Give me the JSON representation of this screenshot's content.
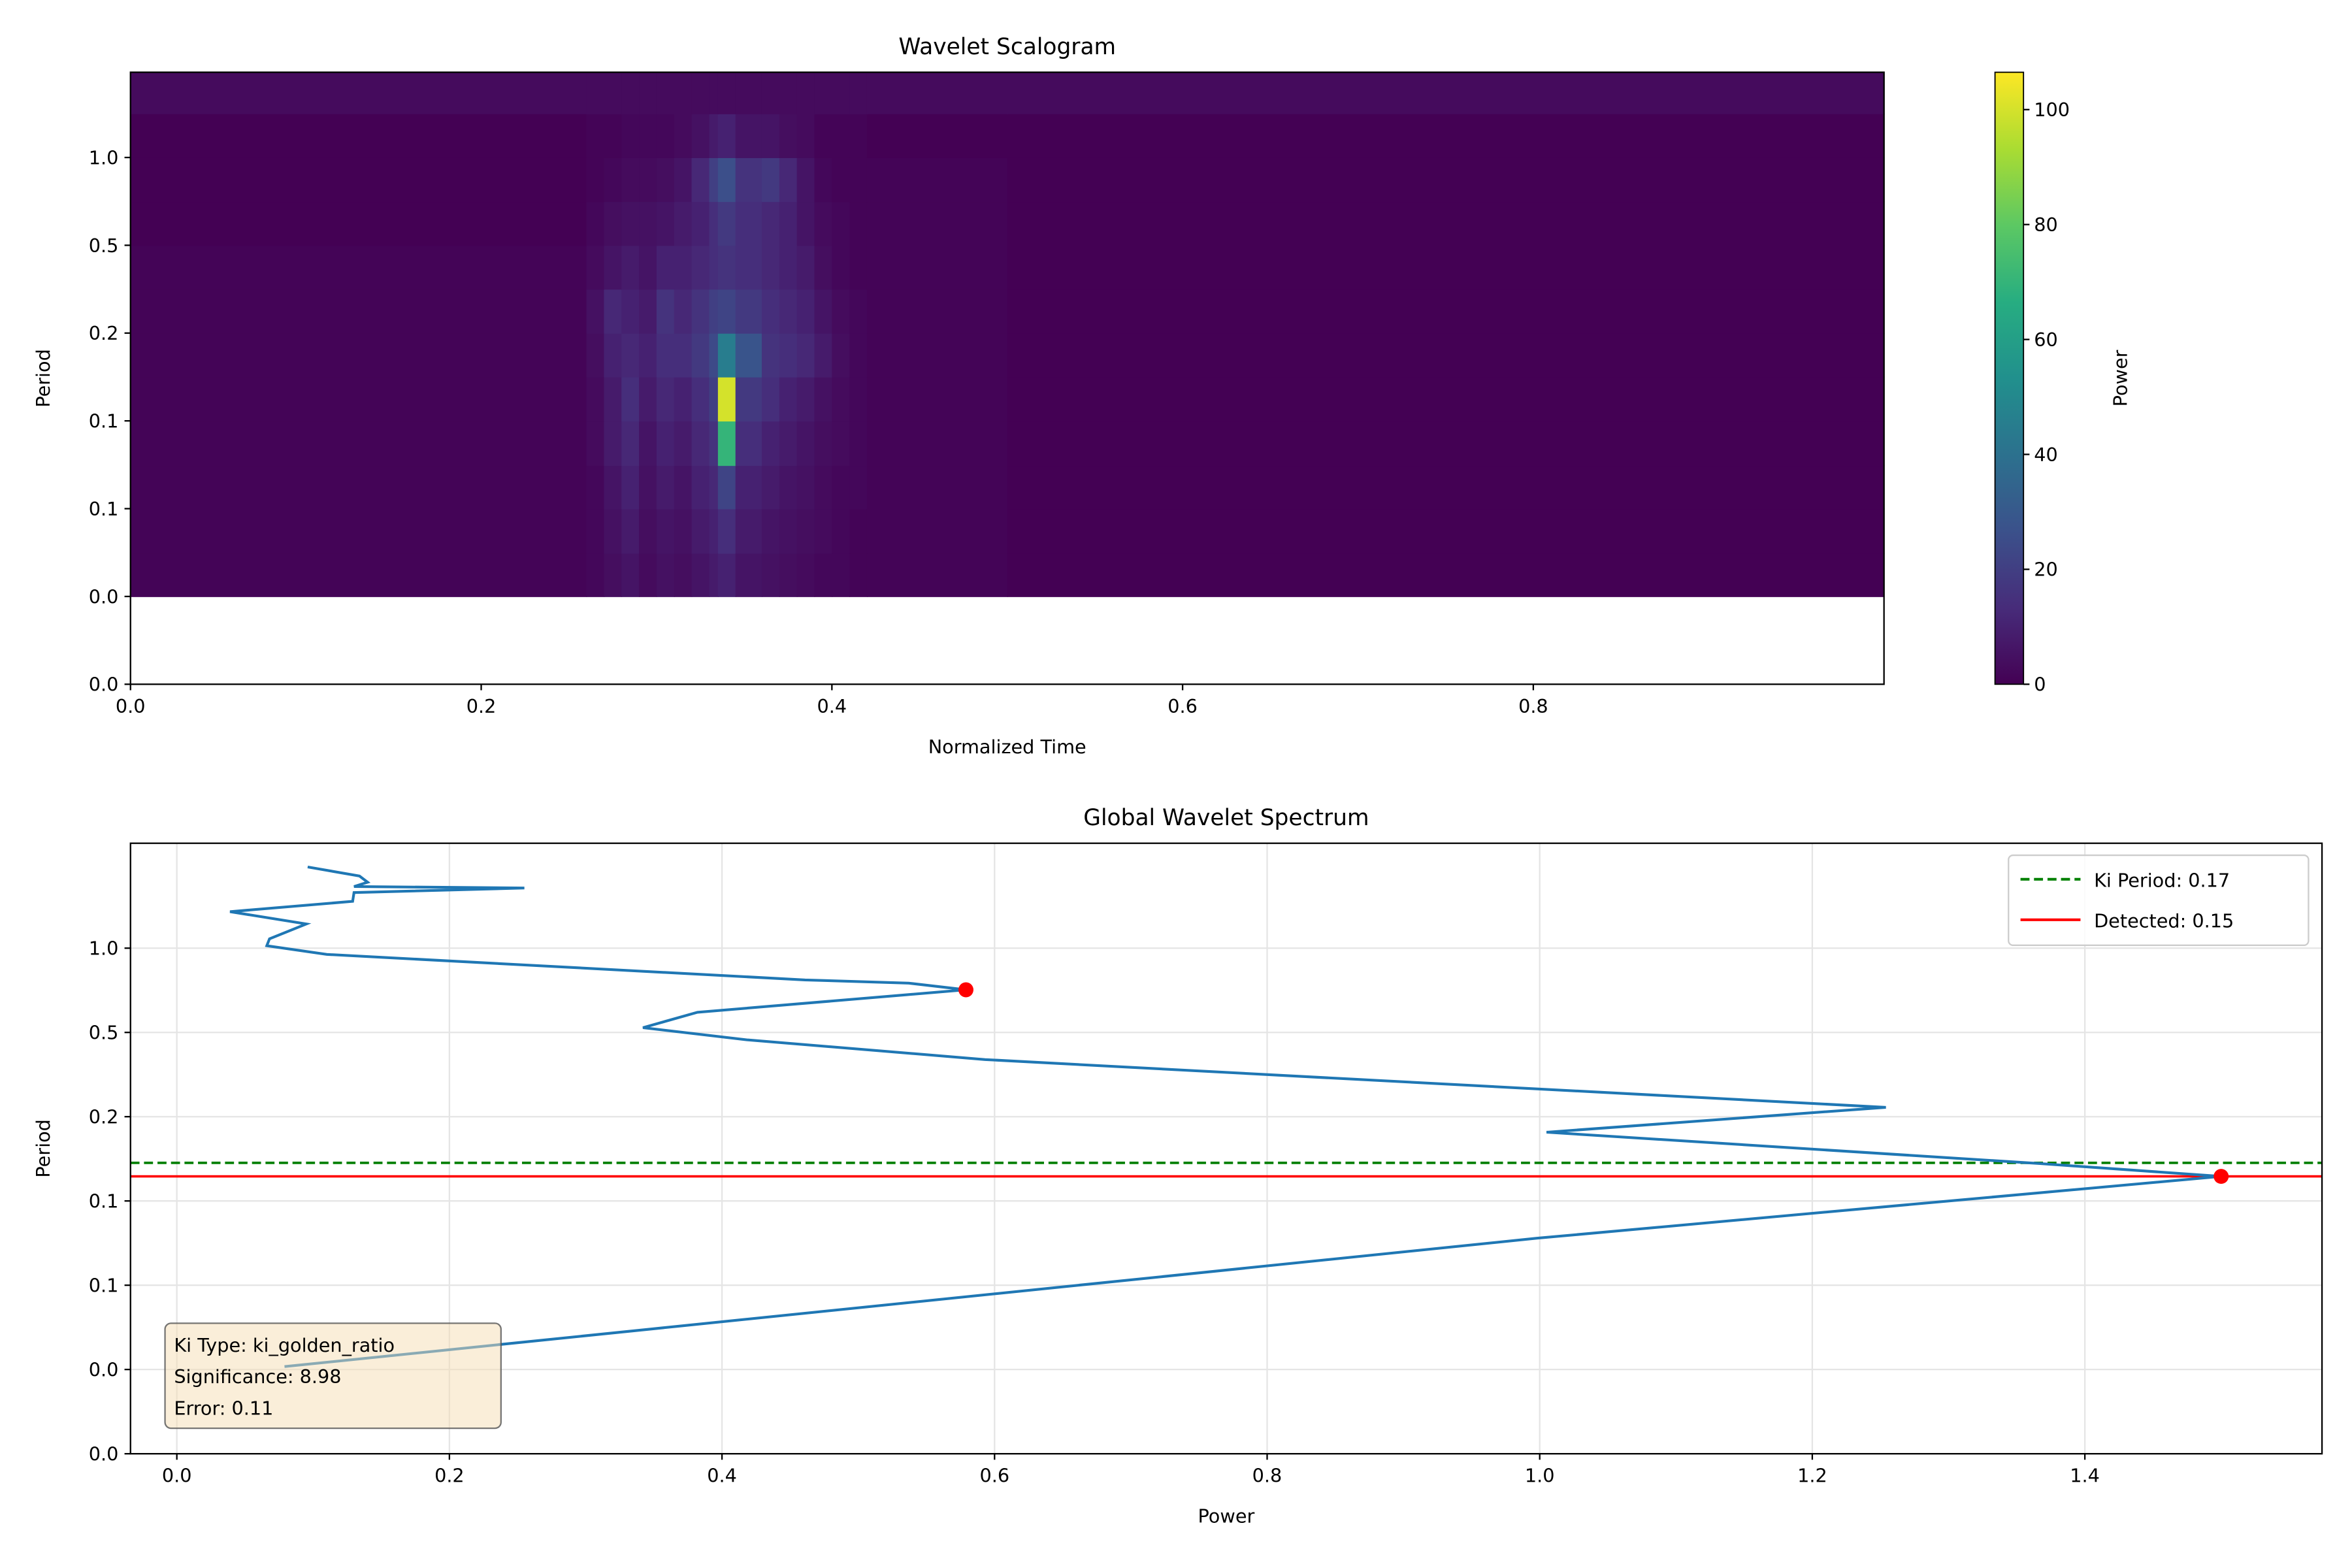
{
  "chart_data": [
    {
      "type": "heatmap",
      "title": "Wavelet Scalogram",
      "xlabel": "Normalized Time",
      "ylabel": "Period",
      "xlim": [
        0,
        1
      ],
      "ylim": [
        0.015625,
        1.96
      ],
      "yscale": "log2",
      "xticks": [
        {
          "value": 0,
          "label": "0.0"
        },
        0.2,
        0.4,
        0.6,
        0.8
      ],
      "yticks": [
        {
          "value": 0.015625,
          "label": "0.0"
        },
        {
          "value": 0.03125,
          "label": "0.0"
        },
        {
          "value": 0.0625,
          "label": "0.1"
        },
        {
          "value": 0.125,
          "label": "0.1"
        },
        {
          "value": 0.25,
          "label": "0.2"
        },
        {
          "value": 0.5,
          "label": "0.5"
        },
        {
          "value": 1,
          "label": "1.0"
        }
      ],
      "x_edges": [
        0,
        0.26,
        0.27,
        0.28,
        0.29,
        0.3,
        0.31,
        0.32,
        0.33,
        0.335,
        0.345,
        0.36,
        0.37,
        0.38,
        0.39,
        0.4,
        0.41,
        0.42,
        0.5,
        1
      ],
      "y_edges": [
        0.03125,
        0.044,
        0.0625,
        0.088,
        0.125,
        0.177,
        0.25,
        0.354,
        0.5,
        0.707,
        1.0,
        1.414,
        1.96
      ],
      "z": [
        [
          1,
          2,
          4,
          6,
          3,
          5,
          4,
          6,
          8,
          10,
          6,
          5,
          4,
          3,
          2,
          2,
          1,
          1,
          0
        ],
        [
          1,
          2,
          5,
          8,
          4,
          6,
          5,
          8,
          10,
          14,
          8,
          6,
          5,
          4,
          3,
          2,
          1,
          1,
          0
        ],
        [
          1,
          2,
          6,
          10,
          5,
          8,
          6,
          10,
          12,
          22,
          10,
          8,
          6,
          5,
          3,
          2,
          2,
          1,
          0
        ],
        [
          1,
          3,
          8,
          12,
          6,
          10,
          8,
          12,
          16,
          70,
          14,
          10,
          8,
          6,
          4,
          3,
          2,
          1,
          0
        ],
        [
          1,
          3,
          8,
          14,
          8,
          12,
          10,
          14,
          20,
          100,
          18,
          14,
          10,
          8,
          5,
          3,
          2,
          1,
          0
        ],
        [
          1,
          4,
          10,
          12,
          10,
          14,
          14,
          18,
          24,
          45,
          28,
          16,
          14,
          12,
          8,
          4,
          2,
          1,
          0
        ],
        [
          1,
          5,
          12,
          10,
          8,
          16,
          12,
          16,
          20,
          22,
          18,
          14,
          12,
          10,
          6,
          3,
          2,
          1,
          0
        ],
        [
          1,
          3,
          6,
          8,
          6,
          10,
          10,
          12,
          14,
          16,
          14,
          12,
          10,
          8,
          4,
          2,
          1,
          1,
          0
        ],
        [
          0,
          2,
          4,
          5,
          5,
          6,
          8,
          10,
          14,
          18,
          14,
          12,
          10,
          6,
          3,
          2,
          1,
          1,
          0
        ],
        [
          0,
          1,
          2,
          3,
          3,
          4,
          6,
          12,
          20,
          26,
          16,
          18,
          12,
          6,
          2,
          1,
          1,
          1,
          0
        ],
        [
          0,
          1,
          1,
          2,
          2,
          2,
          3,
          5,
          8,
          10,
          6,
          6,
          4,
          3,
          1,
          1,
          1,
          0,
          0
        ],
        [
          3,
          3,
          3,
          3,
          3,
          3,
          3,
          3,
          3,
          3,
          3,
          3,
          3,
          3,
          3,
          3,
          3,
          3,
          3
        ]
      ],
      "colorbar": {
        "label": "Power",
        "colormap": "viridis",
        "lim": [
          0,
          106.5
        ],
        "ticks": [
          0,
          20,
          40,
          60,
          80,
          100
        ]
      }
    },
    {
      "type": "line",
      "title": "Global Wavelet Spectrum",
      "xlabel": "Power",
      "ylabel": "Period",
      "xlim": [
        -0.034,
        1.574
      ],
      "ylim": [
        0.015625,
        2.37
      ],
      "yscale": "log2",
      "grid": true,
      "legend": "upper right",
      "xticks": [
        {
          "value": 0,
          "label": "0.0"
        },
        0.2,
        0.4,
        0.6,
        0.8,
        {
          "value": 1,
          "label": "1.0"
        },
        1.2,
        1.4
      ],
      "yticks": [
        {
          "value": 0.015625,
          "label": "0.0"
        },
        {
          "value": 0.03125,
          "label": "0.0"
        },
        {
          "value": 0.0625,
          "label": "0.1"
        },
        {
          "value": 0.125,
          "label": "0.1"
        },
        {
          "value": 0.25,
          "label": "0.2"
        },
        {
          "value": 0.5,
          "label": "0.5"
        },
        {
          "value": 1,
          "label": "1.0"
        }
      ],
      "series": [
        {
          "color": "#1f77b4",
          "x": [
            0.096,
            0.134,
            0.14,
            0.13,
            0.255,
            0.13,
            0.129,
            0.039,
            0.095,
            0.068,
            0.066,
            0.11,
            0.461,
            0.537,
            0.579,
            0.382,
            0.342,
            0.419,
            0.593,
            0.865,
            1.254,
            1.005,
            1.367,
            1.5,
            0.998,
            0.079
          ],
          "values": [
            1.95,
            1.81,
            1.72,
            1.66,
            1.64,
            1.58,
            1.47,
            1.35,
            1.22,
            1.08,
            1.02,
            0.95,
            0.77,
            0.75,
            0.71,
            0.59,
            0.52,
            0.47,
            0.4,
            0.34,
            0.27,
            0.22,
            0.17,
            0.153,
            0.092,
            0.032
          ]
        },
        {
          "color": "red",
          "marker": "o",
          "x": [
            0.579,
            1.5
          ],
          "values": [
            0.71,
            0.153
          ]
        }
      ],
      "hlines": [
        {
          "name": "Ki Period: 0.17",
          "value": 0.171,
          "color": "green",
          "style": "dashed"
        },
        {
          "name": "Detected: 0.15",
          "value": 0.153,
          "color": "red",
          "style": "solid"
        }
      ],
      "annotation": [
        "Ki Type: ki_golden_ratio",
        "Significance: 8.98",
        "Error: 0.11"
      ]
    }
  ]
}
